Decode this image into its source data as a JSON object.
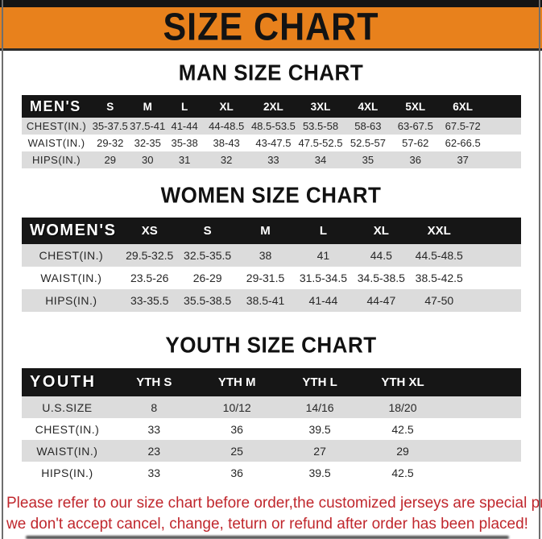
{
  "banner": {
    "title": "SIZE CHART"
  },
  "sections": [
    {
      "title": "MAN SIZE CHART",
      "header_label": "MEN'S",
      "columns": [
        "S",
        "M",
        "L",
        "XL",
        "2XL",
        "3XL",
        "4XL",
        "5XL",
        "6XL"
      ],
      "rows": [
        {
          "label": "CHEST(IN.)",
          "values": [
            "35-37.5",
            "37.5-41",
            "41-44",
            "44-48.5",
            "48.5-53.5",
            "53.5-58",
            "58-63",
            "63-67.5",
            "67.5-72"
          ]
        },
        {
          "label": "WAIST(IN.)",
          "values": [
            "29-32",
            "32-35",
            "35-38",
            "38-43",
            "43-47.5",
            "47.5-52.5",
            "52.5-57",
            "57-62",
            "62-66.5"
          ]
        },
        {
          "label": "HIPS(IN.)",
          "values": [
            "29",
            "30",
            "31",
            "32",
            "33",
            "34",
            "35",
            "36",
            "37"
          ]
        }
      ]
    },
    {
      "title": "WOMEN SIZE CHART",
      "header_label": "WOMEN'S",
      "columns": [
        "XS",
        "S",
        "M",
        "L",
        "XL",
        "XXL"
      ],
      "rows": [
        {
          "label": "CHEST(IN.)",
          "values": [
            "29.5-32.5",
            "32.5-35.5",
            "38",
            "41",
            "44.5",
            "44.5-48.5"
          ]
        },
        {
          "label": "WAIST(IN.)",
          "values": [
            "23.5-26",
            "26-29",
            "29-31.5",
            "31.5-34.5",
            "34.5-38.5",
            "38.5-42.5"
          ]
        },
        {
          "label": "HIPS(IN.)",
          "values": [
            "33-35.5",
            "35.5-38.5",
            "38.5-41",
            "41-44",
            "44-47",
            "47-50"
          ]
        }
      ]
    },
    {
      "title": "YOUTH SIZE CHART",
      "header_label": "YOUTH",
      "columns": [
        "YTH S",
        "YTH M",
        "YTH L",
        "YTH XL"
      ],
      "rows": [
        {
          "label": "U.S.SIZE",
          "values": [
            "8",
            "10/12",
            "14/16",
            "18/20"
          ]
        },
        {
          "label": "CHEST(IN.)",
          "values": [
            "33",
            "36",
            "39.5",
            "42.5"
          ]
        },
        {
          "label": "WAIST(IN.)",
          "values": [
            "23",
            "25",
            "27",
            "29"
          ]
        },
        {
          "label": "HIPS(IN.)",
          "values": [
            "33",
            "36",
            "39.5",
            "42.5"
          ]
        }
      ]
    }
  ],
  "footer": {
    "line1": "Please refer to our size chart before order,the customized jerseys are special products,",
    "line2": "we don't accept cancel, change, teturn or refund after order has been placed!"
  },
  "colors": {
    "banner_bg": "#E8811C",
    "top_bar": "#141414",
    "header_row_bg": "#161616",
    "stripe_bg": "#DCDCDC",
    "footer_red": "#C0272D"
  }
}
